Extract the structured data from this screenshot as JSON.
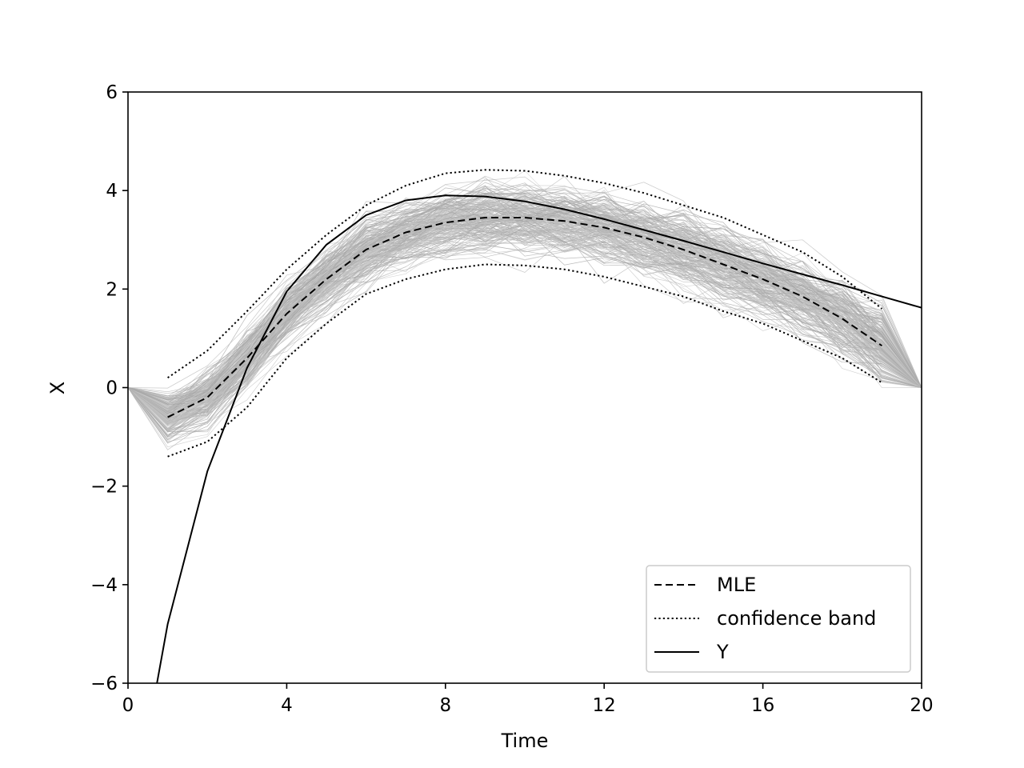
{
  "chart_data": {
    "type": "line",
    "title": "",
    "xlabel": "Time",
    "ylabel": "X",
    "xlim": [
      0,
      20
    ],
    "ylim": [
      -6,
      6
    ],
    "xticks": [
      0,
      4,
      8,
      12,
      16,
      20
    ],
    "xtick_labels": [
      "0",
      "4",
      "8",
      "12",
      "16",
      "20"
    ],
    "yticks": [
      -6,
      -4,
      -2,
      0,
      2,
      4,
      6
    ],
    "ytick_labels": [
      "−6",
      "−4",
      "−2",
      "0",
      "2",
      "4",
      "6"
    ],
    "grid": false,
    "legend_position": "lower-right",
    "background_paths": {
      "description_color": "#b0b0b0",
      "count": 220,
      "x": [
        0,
        1,
        2,
        3,
        4,
        5,
        6,
        7,
        8,
        9,
        10,
        11,
        12,
        13,
        14,
        15,
        16,
        17,
        18,
        19,
        20
      ],
      "center": [
        0,
        -0.6,
        -0.2,
        0.6,
        1.5,
        2.2,
        2.8,
        3.15,
        3.35,
        3.45,
        3.45,
        3.38,
        3.25,
        3.05,
        2.8,
        2.5,
        2.2,
        1.85,
        1.4,
        0.85,
        0
      ],
      "spread": [
        0,
        0.45,
        0.5,
        0.55,
        0.55,
        0.55,
        0.6,
        0.6,
        0.6,
        0.65,
        0.65,
        0.65,
        0.65,
        0.65,
        0.7,
        0.7,
        0.7,
        0.7,
        0.7,
        0.75,
        0
      ]
    },
    "series": [
      {
        "name": "MLE",
        "style": "dashed",
        "color": "#000000",
        "x": [
          1,
          2,
          3,
          4,
          5,
          6,
          7,
          8,
          9,
          10,
          11,
          12,
          13,
          14,
          15,
          16,
          17,
          18,
          19
        ],
        "values": [
          -0.6,
          -0.2,
          0.6,
          1.5,
          2.2,
          2.8,
          3.15,
          3.35,
          3.45,
          3.45,
          3.38,
          3.25,
          3.05,
          2.8,
          2.5,
          2.2,
          1.85,
          1.4,
          0.85
        ]
      },
      {
        "name": "confidence band",
        "style": "dotted",
        "color": "#000000",
        "x": [
          1,
          2,
          3,
          4,
          5,
          6,
          7,
          8,
          9,
          10,
          11,
          12,
          13,
          14,
          15,
          16,
          17,
          18,
          19
        ],
        "values": [
          0.2,
          0.75,
          1.55,
          2.4,
          3.1,
          3.7,
          4.1,
          4.35,
          4.42,
          4.4,
          4.3,
          4.15,
          3.95,
          3.7,
          3.45,
          3.1,
          2.75,
          2.25,
          1.6
        ]
      },
      {
        "name": "",
        "style": "dotted",
        "color": "#000000",
        "x": [
          1,
          2,
          3,
          4,
          5,
          6,
          7,
          8,
          9,
          10,
          11,
          12,
          13,
          14,
          15,
          16,
          17,
          18,
          19
        ],
        "values": [
          -1.4,
          -1.1,
          -0.4,
          0.6,
          1.3,
          1.9,
          2.2,
          2.4,
          2.5,
          2.48,
          2.4,
          2.25,
          2.05,
          1.85,
          1.55,
          1.3,
          0.95,
          0.6,
          0.1
        ]
      },
      {
        "name": "Y",
        "style": "solid",
        "color": "#000000",
        "x": [
          0.73,
          1,
          2,
          3,
          4,
          5,
          6,
          7,
          8,
          9,
          10,
          11,
          12,
          13,
          14,
          15,
          16,
          17,
          18,
          19,
          20
        ],
        "values": [
          -6,
          -4.8,
          -1.7,
          0.4,
          1.95,
          2.9,
          3.5,
          3.8,
          3.9,
          3.88,
          3.78,
          3.62,
          3.42,
          3.2,
          2.98,
          2.75,
          2.52,
          2.3,
          2.08,
          1.85,
          1.62
        ]
      }
    ],
    "legend": [
      {
        "label": "MLE",
        "style": "dashed"
      },
      {
        "label": "confidence band",
        "style": "dotted"
      },
      {
        "label": "Y",
        "style": "solid"
      }
    ]
  }
}
